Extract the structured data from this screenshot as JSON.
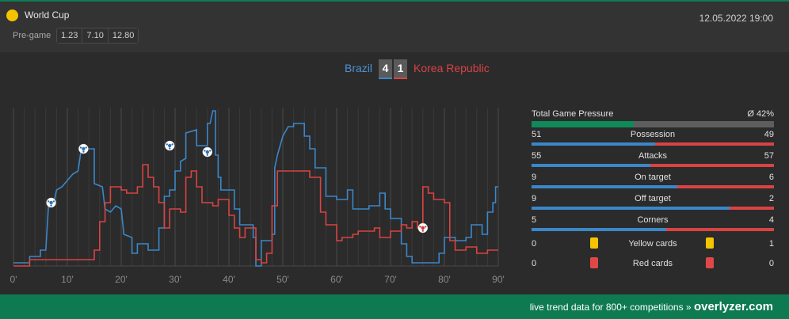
{
  "competition": {
    "name": "World Cup",
    "icon": "trophy-icon",
    "icon_color": "#f5c400"
  },
  "datetime": "12.05.2022 19:00",
  "pregame": {
    "label": "Pre-game",
    "odds": [
      "1.23",
      "7.10",
      "12.80"
    ]
  },
  "match": {
    "home_team": "Brazil",
    "away_team": "Korea Republic",
    "home_score": "4",
    "away_score": "1",
    "home_color": "#4d93d9",
    "away_color": "#d94343"
  },
  "stats": {
    "pressure": {
      "label": "Total Game Pressure",
      "value": "Ø 42%",
      "percent": 42
    },
    "rows": [
      {
        "label": "Possession",
        "home": "51",
        "away": "49"
      },
      {
        "label": "Attacks",
        "home": "55",
        "away": "57"
      },
      {
        "label": "On target",
        "home": "9",
        "away": "6"
      },
      {
        "label": "Off target",
        "home": "9",
        "away": "2"
      },
      {
        "label": "Corners",
        "home": "5",
        "away": "4"
      }
    ],
    "yellow": {
      "label": "Yellow cards",
      "home": "0",
      "away": "1",
      "color": "#f5c400"
    },
    "red": {
      "label": "Red cards",
      "home": "0",
      "away": "0",
      "color": "#e04848"
    }
  },
  "footer": {
    "text": "live trend data for 800+ competitions »",
    "brand": "overlyzer.com"
  },
  "chart_data": {
    "type": "line",
    "x_ticks": [
      "0'",
      "10'",
      "20'",
      "30'",
      "40'",
      "50'",
      "60'",
      "70'",
      "80'",
      "90'"
    ],
    "xlim": [
      0,
      90
    ],
    "ylim": [
      0,
      100
    ],
    "grid": true,
    "series": [
      {
        "color": "#3b87c9",
        "points": [
          [
            0,
            2
          ],
          [
            3,
            2
          ],
          [
            3,
            6
          ],
          [
            5,
            6
          ],
          [
            5,
            10
          ],
          [
            6,
            10
          ],
          [
            6.5,
            38
          ],
          [
            7.5,
            40
          ],
          [
            8,
            48
          ],
          [
            9,
            50
          ],
          [
            10,
            54
          ],
          [
            11,
            58
          ],
          [
            12,
            60
          ],
          [
            12.5,
            72
          ],
          [
            13,
            74
          ],
          [
            15,
            74
          ],
          [
            15,
            52
          ],
          [
            16.5,
            50
          ],
          [
            17,
            36
          ],
          [
            18,
            34
          ],
          [
            19,
            38
          ],
          [
            20,
            36
          ],
          [
            20.5,
            20
          ],
          [
            22,
            18
          ],
          [
            22,
            8
          ],
          [
            23,
            8
          ],
          [
            23,
            14
          ],
          [
            25,
            14
          ],
          [
            25,
            10
          ],
          [
            27,
            10
          ],
          [
            27,
            24
          ],
          [
            28,
            24
          ],
          [
            28,
            44
          ],
          [
            29,
            44
          ],
          [
            29,
            48
          ],
          [
            30,
            48
          ],
          [
            30,
            60
          ],
          [
            31,
            60
          ],
          [
            31,
            66
          ],
          [
            32,
            68
          ],
          [
            32,
            84
          ],
          [
            34,
            86
          ],
          [
            34,
            76
          ],
          [
            36,
            76
          ],
          [
            36,
            90
          ],
          [
            36.5,
            90
          ],
          [
            37,
            98
          ],
          [
            37.5,
            98
          ],
          [
            37.5,
            70
          ],
          [
            38,
            70
          ],
          [
            38,
            56
          ],
          [
            38.5,
            56
          ],
          [
            38.5,
            48
          ],
          [
            41,
            48
          ],
          [
            41,
            36
          ],
          [
            42,
            36
          ],
          [
            42,
            26
          ],
          [
            44.5,
            26
          ],
          [
            44.5,
            18
          ],
          [
            45,
            18
          ],
          [
            45,
            0
          ],
          [
            46,
            0
          ],
          [
            46,
            16
          ],
          [
            48,
            16
          ],
          [
            48,
            20
          ],
          [
            48.5,
            20
          ],
          [
            48.5,
            62
          ],
          [
            49,
            70
          ],
          [
            50,
            82
          ],
          [
            51,
            88
          ],
          [
            52,
            88
          ],
          [
            52,
            90
          ],
          [
            54,
            90
          ],
          [
            54,
            82
          ],
          [
            55,
            82
          ],
          [
            55,
            74
          ],
          [
            56,
            74
          ],
          [
            56,
            62
          ],
          [
            58,
            62
          ],
          [
            58,
            44
          ],
          [
            60,
            44
          ],
          [
            60,
            42
          ],
          [
            62,
            42
          ],
          [
            62,
            48
          ],
          [
            63,
            48
          ],
          [
            63,
            36
          ],
          [
            66,
            36
          ],
          [
            66,
            38
          ],
          [
            68,
            38
          ],
          [
            68,
            46
          ],
          [
            69,
            46
          ],
          [
            69,
            36
          ],
          [
            70,
            36
          ],
          [
            70,
            30
          ],
          [
            72,
            30
          ],
          [
            72,
            14
          ],
          [
            73,
            14
          ],
          [
            73,
            6
          ],
          [
            74,
            6
          ],
          [
            74,
            2
          ],
          [
            79,
            2
          ],
          [
            79,
            8
          ],
          [
            80,
            8
          ],
          [
            80,
            18
          ],
          [
            82,
            18
          ],
          [
            82,
            16
          ],
          [
            84,
            16
          ],
          [
            84,
            18
          ],
          [
            85,
            18
          ],
          [
            85,
            26
          ],
          [
            87,
            26
          ],
          [
            87,
            20
          ],
          [
            88,
            20
          ],
          [
            88,
            34
          ],
          [
            89,
            34
          ],
          [
            89,
            40
          ],
          [
            89.5,
            40
          ],
          [
            89.5,
            50
          ],
          [
            90,
            50
          ]
        ]
      },
      {
        "color": "#d94343",
        "points": [
          [
            0,
            0
          ],
          [
            3,
            0
          ],
          [
            3,
            4
          ],
          [
            15,
            4
          ],
          [
            15,
            10
          ],
          [
            16,
            10
          ],
          [
            16,
            28
          ],
          [
            17,
            28
          ],
          [
            17,
            40
          ],
          [
            18,
            40
          ],
          [
            18,
            50
          ],
          [
            20,
            50
          ],
          [
            20,
            48
          ],
          [
            21,
            48
          ],
          [
            21,
            46
          ],
          [
            23,
            46
          ],
          [
            23,
            50
          ],
          [
            24,
            50
          ],
          [
            24,
            64
          ],
          [
            25,
            64
          ],
          [
            25,
            56
          ],
          [
            26,
            56
          ],
          [
            26,
            50
          ],
          [
            27,
            50
          ],
          [
            27,
            40
          ],
          [
            28,
            40
          ],
          [
            28,
            24
          ],
          [
            29,
            24
          ],
          [
            29,
            36
          ],
          [
            31,
            36
          ],
          [
            31,
            34
          ],
          [
            32,
            34
          ],
          [
            32,
            56
          ],
          [
            33,
            56
          ],
          [
            33,
            60
          ],
          [
            34,
            60
          ],
          [
            34,
            50
          ],
          [
            35,
            50
          ],
          [
            35,
            40
          ],
          [
            37,
            40
          ],
          [
            37,
            38
          ],
          [
            38,
            38
          ],
          [
            38,
            42
          ],
          [
            40,
            42
          ],
          [
            40,
            32
          ],
          [
            41,
            32
          ],
          [
            41,
            24
          ],
          [
            42,
            24
          ],
          [
            42,
            18
          ],
          [
            43,
            18
          ],
          [
            43,
            24
          ],
          [
            45,
            24
          ],
          [
            45,
            4
          ],
          [
            46,
            4
          ],
          [
            46,
            2
          ],
          [
            47,
            2
          ],
          [
            47,
            8
          ],
          [
            48,
            8
          ],
          [
            48,
            38
          ],
          [
            49,
            38
          ],
          [
            49,
            60
          ],
          [
            55,
            60
          ],
          [
            55,
            56
          ],
          [
            57,
            56
          ],
          [
            57,
            34
          ],
          [
            58,
            34
          ],
          [
            58,
            26
          ],
          [
            60,
            26
          ],
          [
            60,
            16
          ],
          [
            61,
            16
          ],
          [
            61,
            18
          ],
          [
            63,
            18
          ],
          [
            63,
            20
          ],
          [
            64,
            20
          ],
          [
            64,
            22
          ],
          [
            67,
            22
          ],
          [
            67,
            24
          ],
          [
            68,
            24
          ],
          [
            68,
            18
          ],
          [
            70,
            18
          ],
          [
            70,
            22
          ],
          [
            72,
            22
          ],
          [
            72,
            26
          ],
          [
            73,
            26
          ],
          [
            73,
            24
          ],
          [
            74,
            24
          ],
          [
            74,
            28
          ],
          [
            75,
            28
          ],
          [
            75,
            24
          ],
          [
            76,
            24
          ],
          [
            76,
            50
          ],
          [
            77,
            50
          ],
          [
            77,
            46
          ],
          [
            78,
            46
          ],
          [
            78,
            42
          ],
          [
            80,
            42
          ],
          [
            80,
            40
          ],
          [
            81,
            40
          ],
          [
            81,
            16
          ],
          [
            82,
            16
          ],
          [
            82,
            10
          ],
          [
            84,
            10
          ],
          [
            84,
            12
          ],
          [
            86,
            12
          ],
          [
            86,
            8
          ],
          [
            88,
            8
          ],
          [
            88,
            10
          ],
          [
            90,
            10
          ]
        ]
      }
    ],
    "goals": [
      {
        "team": "home",
        "minute": 7,
        "level": 40
      },
      {
        "team": "home",
        "minute": 13,
        "level": 74
      },
      {
        "team": "home",
        "minute": 29,
        "level": 76
      },
      {
        "team": "home",
        "minute": 36,
        "level": 72
      },
      {
        "team": "away",
        "minute": 76,
        "level": 24
      }
    ]
  }
}
